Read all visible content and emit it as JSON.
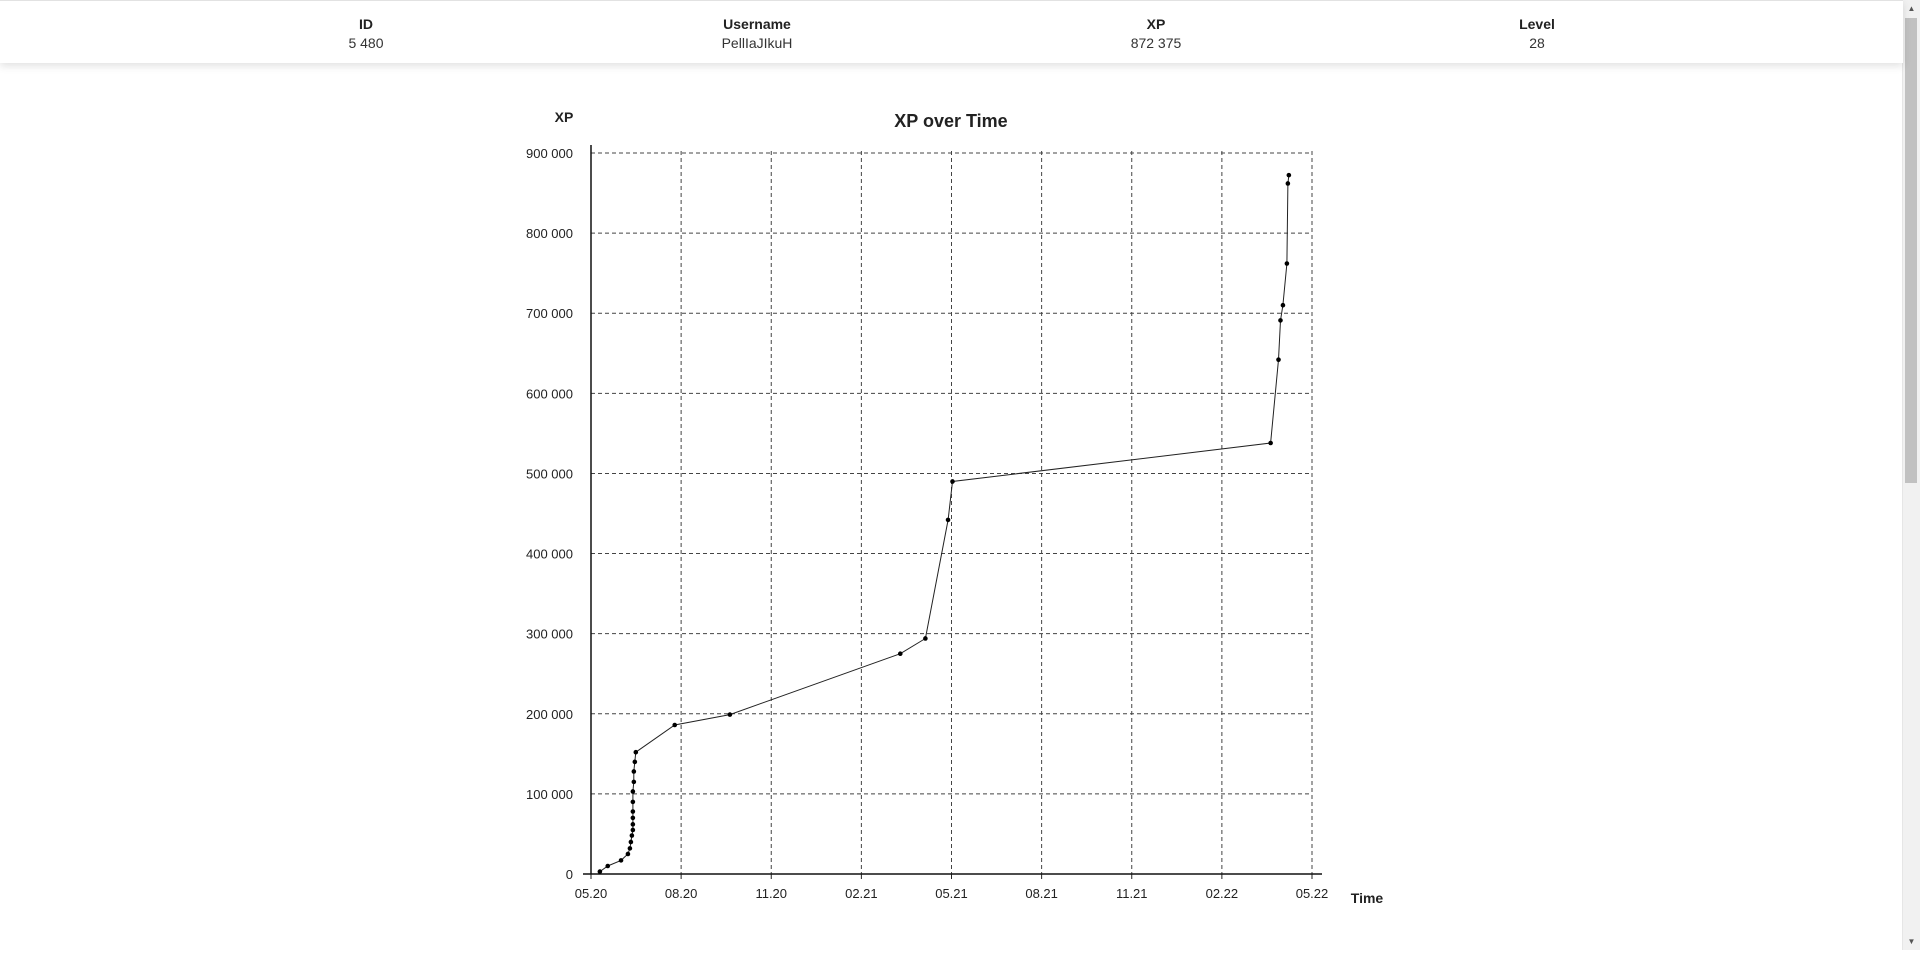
{
  "header": {
    "stats": [
      {
        "label": "ID",
        "value": "5 480"
      },
      {
        "label": "Username",
        "value": "PellIaJIkuH"
      },
      {
        "label": "XP",
        "value": "872 375"
      },
      {
        "label": "Level",
        "value": "28"
      }
    ]
  },
  "chart_data": {
    "type": "line",
    "title": "XP over Time",
    "xlabel": "Time",
    "ylabel": "XP",
    "x_ticks": [
      "05.20",
      "08.20",
      "11.20",
      "02.21",
      "05.21",
      "08.21",
      "11.21",
      "02.22",
      "05.22"
    ],
    "y_ticks": [
      "0",
      "100 000",
      "200 000",
      "300 000",
      "400 000",
      "500 000",
      "600 000",
      "700 000",
      "800 000",
      "900 000"
    ],
    "ylim": [
      0,
      900000
    ],
    "xlim": [
      "2020-05",
      "2022-05"
    ],
    "grid": true,
    "line_color": "#222222",
    "series": [
      {
        "points": [
          {
            "x": "2020-05-10",
            "y": 3000
          },
          {
            "x": "2020-05-18",
            "y": 10000
          },
          {
            "x": "2020-06-01",
            "y": 17000
          },
          {
            "x": "2020-06-08",
            "y": 25000
          },
          {
            "x": "2020-06-10",
            "y": 32000
          },
          {
            "x": "2020-06-11",
            "y": 40000
          },
          {
            "x": "2020-06-12",
            "y": 48000
          },
          {
            "x": "2020-06-13",
            "y": 55000
          },
          {
            "x": "2020-06-13",
            "y": 62000
          },
          {
            "x": "2020-06-13",
            "y": 70000
          },
          {
            "x": "2020-06-13",
            "y": 78000
          },
          {
            "x": "2020-06-13",
            "y": 90000
          },
          {
            "x": "2020-06-13",
            "y": 103000
          },
          {
            "x": "2020-06-14",
            "y": 115000
          },
          {
            "x": "2020-06-14",
            "y": 128000
          },
          {
            "x": "2020-06-15",
            "y": 140000
          },
          {
            "x": "2020-06-16",
            "y": 152000
          },
          {
            "x": "2020-07-25",
            "y": 186000
          },
          {
            "x": "2020-09-20",
            "y": 199000
          },
          {
            "x": "2021-03-10",
            "y": 275000
          },
          {
            "x": "2021-04-05",
            "y": 294000
          },
          {
            "x": "2021-04-28",
            "y": 442000
          },
          {
            "x": "2021-05-02",
            "y": 490000
          },
          {
            "x": "2022-03-20",
            "y": 538000
          },
          {
            "x": "2022-03-28",
            "y": 642000
          },
          {
            "x": "2022-03-30",
            "y": 691000
          },
          {
            "x": "2022-04-02",
            "y": 710000
          },
          {
            "x": "2022-04-06",
            "y": 762000
          },
          {
            "x": "2022-04-07",
            "y": 862000
          },
          {
            "x": "2022-04-08",
            "y": 872375
          }
        ]
      }
    ]
  }
}
